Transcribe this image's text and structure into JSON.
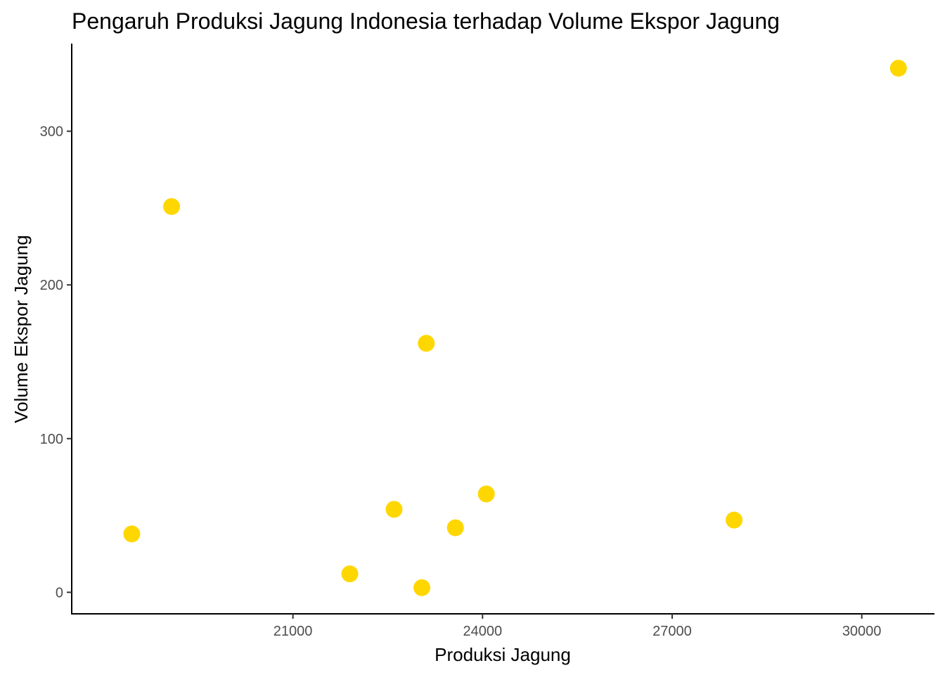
{
  "chart_data": {
    "type": "scatter",
    "title": "Pengaruh Produksi Jagung Indonesia terhadap Volume Ekspor Jagung",
    "xlabel": "Produksi Jagung",
    "ylabel": "Volume Ekspor Jagung",
    "xlim": [
      17500,
      31150
    ],
    "ylim": [
      -14,
      357
    ],
    "xticks": [
      21000,
      24000,
      27000,
      30000
    ],
    "yticks": [
      0,
      100,
      200,
      300
    ],
    "grid": false,
    "legend": "none",
    "point_color": "#FFD700",
    "points": [
      {
        "x": 18450,
        "y": 38
      },
      {
        "x": 19080,
        "y": 251
      },
      {
        "x": 21900,
        "y": 12
      },
      {
        "x": 22600,
        "y": 54
      },
      {
        "x": 23040,
        "y": 3
      },
      {
        "x": 23110,
        "y": 162
      },
      {
        "x": 23570,
        "y": 42
      },
      {
        "x": 24060,
        "y": 64
      },
      {
        "x": 27980,
        "y": 47
      },
      {
        "x": 30580,
        "y": 341
      }
    ]
  }
}
